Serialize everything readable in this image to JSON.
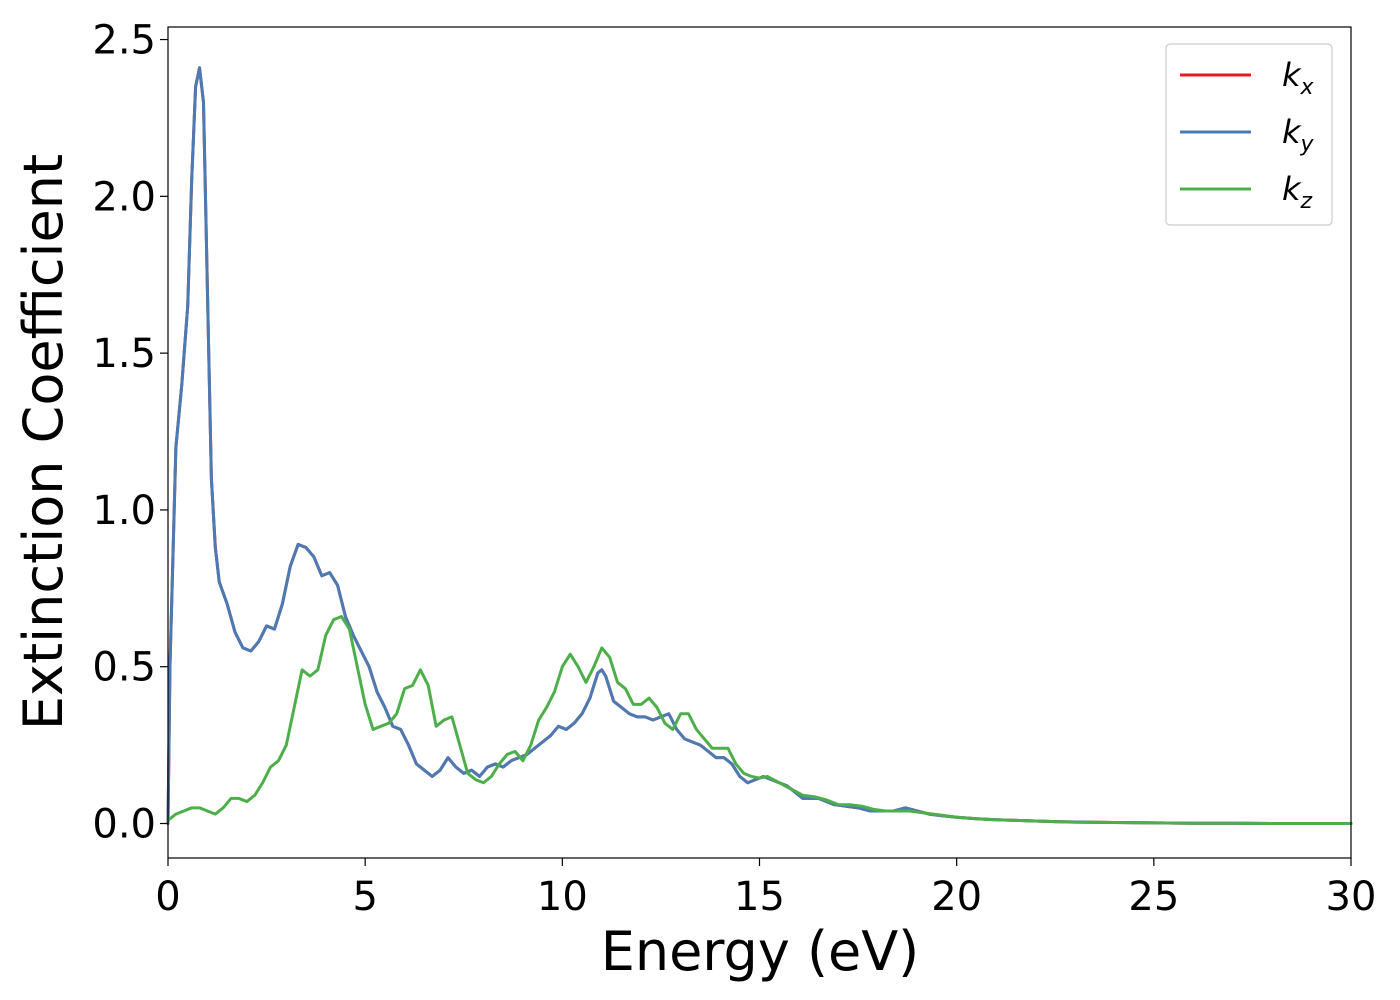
{
  "chart_data": {
    "type": "line",
    "xlabel": "Energy (eV)",
    "ylabel": "Extinction Coefficient",
    "xlim": [
      0,
      30
    ],
    "ylim": [
      -0.11,
      2.54
    ],
    "xticks": [
      0,
      5,
      10,
      15,
      20,
      25,
      30
    ],
    "xtick_labels": [
      "0",
      "5",
      "10",
      "15",
      "20",
      "25",
      "30"
    ],
    "yticks": [
      0.0,
      0.5,
      1.0,
      1.5,
      2.0,
      2.5
    ],
    "ytick_labels": [
      "0.0",
      "0.5",
      "1.0",
      "1.5",
      "2.0",
      "2.5"
    ],
    "grid": false,
    "legend_position": "top-right",
    "series": [
      {
        "name": "k",
        "subscript": "x",
        "color": "#e41a1c",
        "x": [
          0,
          0.05,
          0.2,
          0.35,
          0.5,
          0.6,
          0.7,
          0.8,
          0.9,
          1.0,
          1.1,
          1.2,
          1.3,
          1.5,
          1.7,
          1.9,
          2.1,
          2.3,
          2.5,
          2.7,
          2.9,
          3.1,
          3.3,
          3.5,
          3.7,
          3.9,
          4.1,
          4.3,
          4.5,
          4.7,
          4.9,
          5.1,
          5.3,
          5.5,
          5.7,
          5.9,
          6.1,
          6.3,
          6.5,
          6.7,
          6.9,
          7.1,
          7.3,
          7.5,
          7.7,
          7.9,
          8.1,
          8.3,
          8.5,
          8.7,
          8.9,
          9.1,
          9.3,
          9.5,
          9.7,
          9.9,
          10.1,
          10.3,
          10.5,
          10.7,
          10.9,
          11.0,
          11.1,
          11.3,
          11.5,
          11.7,
          11.9,
          12.1,
          12.3,
          12.5,
          12.7,
          12.9,
          13.1,
          13.3,
          13.5,
          13.7,
          13.9,
          14.1,
          14.3,
          14.5,
          14.7,
          14.9,
          15.1,
          15.3,
          15.5,
          15.7,
          15.9,
          16.1,
          16.3,
          16.5,
          16.7,
          16.9,
          17.2,
          17.5,
          17.8,
          18.1,
          18.4,
          18.7,
          19.0,
          19.3,
          19.6,
          20.0,
          20.5,
          21.0,
          21.5,
          22.0,
          22.5,
          23.0,
          24.0,
          25.0,
          26.0,
          27.0,
          28.0,
          29.0,
          30.0
        ],
        "y": [
          0.0,
          0.5,
          1.2,
          1.4,
          1.65,
          2.05,
          2.35,
          2.41,
          2.3,
          1.7,
          1.1,
          0.88,
          0.77,
          0.7,
          0.61,
          0.56,
          0.55,
          0.58,
          0.63,
          0.62,
          0.7,
          0.82,
          0.89,
          0.88,
          0.85,
          0.79,
          0.8,
          0.76,
          0.66,
          0.6,
          0.55,
          0.5,
          0.42,
          0.37,
          0.31,
          0.3,
          0.25,
          0.19,
          0.17,
          0.15,
          0.17,
          0.21,
          0.18,
          0.16,
          0.17,
          0.15,
          0.18,
          0.19,
          0.18,
          0.2,
          0.21,
          0.22,
          0.24,
          0.26,
          0.28,
          0.31,
          0.3,
          0.32,
          0.35,
          0.4,
          0.48,
          0.49,
          0.47,
          0.39,
          0.37,
          0.35,
          0.34,
          0.34,
          0.33,
          0.34,
          0.35,
          0.3,
          0.27,
          0.26,
          0.25,
          0.23,
          0.21,
          0.21,
          0.19,
          0.15,
          0.13,
          0.14,
          0.15,
          0.14,
          0.13,
          0.12,
          0.1,
          0.08,
          0.08,
          0.08,
          0.07,
          0.06,
          0.055,
          0.05,
          0.04,
          0.04,
          0.04,
          0.05,
          0.04,
          0.03,
          0.025,
          0.02,
          0.015,
          0.012,
          0.01,
          0.008,
          0.006,
          0.005,
          0.003,
          0.002,
          0.001,
          0.001,
          0.0,
          0.0,
          0.0
        ]
      },
      {
        "name": "k",
        "subscript": "y",
        "color": "#4a7bb5",
        "x": [
          0,
          0.05,
          0.2,
          0.35,
          0.5,
          0.6,
          0.7,
          0.8,
          0.9,
          1.0,
          1.1,
          1.2,
          1.3,
          1.5,
          1.7,
          1.9,
          2.1,
          2.3,
          2.5,
          2.7,
          2.9,
          3.1,
          3.3,
          3.5,
          3.7,
          3.9,
          4.1,
          4.3,
          4.5,
          4.7,
          4.9,
          5.1,
          5.3,
          5.5,
          5.7,
          5.9,
          6.1,
          6.3,
          6.5,
          6.7,
          6.9,
          7.1,
          7.3,
          7.5,
          7.7,
          7.9,
          8.1,
          8.3,
          8.5,
          8.7,
          8.9,
          9.1,
          9.3,
          9.5,
          9.7,
          9.9,
          10.1,
          10.3,
          10.5,
          10.7,
          10.9,
          11.0,
          11.1,
          11.3,
          11.5,
          11.7,
          11.9,
          12.1,
          12.3,
          12.5,
          12.7,
          12.9,
          13.1,
          13.3,
          13.5,
          13.7,
          13.9,
          14.1,
          14.3,
          14.5,
          14.7,
          14.9,
          15.1,
          15.3,
          15.5,
          15.7,
          15.9,
          16.1,
          16.3,
          16.5,
          16.7,
          16.9,
          17.2,
          17.5,
          17.8,
          18.1,
          18.4,
          18.7,
          19.0,
          19.3,
          19.6,
          20.0,
          20.5,
          21.0,
          21.5,
          22.0,
          22.5,
          23.0,
          24.0,
          25.0,
          26.0,
          27.0,
          28.0,
          29.0,
          30.0
        ],
        "y": [
          0.0,
          0.5,
          1.2,
          1.4,
          1.65,
          2.05,
          2.35,
          2.41,
          2.3,
          1.7,
          1.1,
          0.88,
          0.77,
          0.7,
          0.61,
          0.56,
          0.55,
          0.58,
          0.63,
          0.62,
          0.7,
          0.82,
          0.89,
          0.88,
          0.85,
          0.79,
          0.8,
          0.76,
          0.66,
          0.6,
          0.55,
          0.5,
          0.42,
          0.37,
          0.31,
          0.3,
          0.25,
          0.19,
          0.17,
          0.15,
          0.17,
          0.21,
          0.18,
          0.16,
          0.17,
          0.15,
          0.18,
          0.19,
          0.18,
          0.2,
          0.21,
          0.22,
          0.24,
          0.26,
          0.28,
          0.31,
          0.3,
          0.32,
          0.35,
          0.4,
          0.48,
          0.49,
          0.47,
          0.39,
          0.37,
          0.35,
          0.34,
          0.34,
          0.33,
          0.34,
          0.35,
          0.3,
          0.27,
          0.26,
          0.25,
          0.23,
          0.21,
          0.21,
          0.19,
          0.15,
          0.13,
          0.14,
          0.15,
          0.14,
          0.13,
          0.12,
          0.1,
          0.08,
          0.08,
          0.08,
          0.07,
          0.06,
          0.055,
          0.05,
          0.04,
          0.04,
          0.04,
          0.05,
          0.04,
          0.03,
          0.025,
          0.02,
          0.015,
          0.012,
          0.01,
          0.008,
          0.006,
          0.005,
          0.003,
          0.002,
          0.001,
          0.001,
          0.0,
          0.0,
          0.0
        ]
      },
      {
        "name": "k",
        "subscript": "z",
        "color": "#4daf4a",
        "x": [
          0,
          0.2,
          0.4,
          0.6,
          0.8,
          1.0,
          1.2,
          1.4,
          1.6,
          1.8,
          2.0,
          2.2,
          2.4,
          2.6,
          2.8,
          3.0,
          3.2,
          3.4,
          3.6,
          3.8,
          4.0,
          4.2,
          4.4,
          4.6,
          4.8,
          5.0,
          5.2,
          5.4,
          5.6,
          5.8,
          6.0,
          6.2,
          6.4,
          6.6,
          6.8,
          7.0,
          7.2,
          7.4,
          7.6,
          7.8,
          8.0,
          8.2,
          8.4,
          8.6,
          8.8,
          9.0,
          9.2,
          9.4,
          9.6,
          9.8,
          10.0,
          10.2,
          10.4,
          10.6,
          10.8,
          11.0,
          11.2,
          11.4,
          11.6,
          11.8,
          12.0,
          12.2,
          12.4,
          12.6,
          12.8,
          13.0,
          13.2,
          13.4,
          13.6,
          13.8,
          14.0,
          14.2,
          14.4,
          14.6,
          14.8,
          15.0,
          15.2,
          15.5,
          15.8,
          16.1,
          16.4,
          16.7,
          17.0,
          17.3,
          17.6,
          17.9,
          18.2,
          18.5,
          18.8,
          19.1,
          19.4,
          19.7,
          20.0,
          20.5,
          21.0,
          21.5,
          22.0,
          22.5,
          23.0,
          24.0,
          25.0,
          26.0,
          27.0,
          28.0,
          29.0,
          30.0
        ],
        "y": [
          0.01,
          0.03,
          0.04,
          0.05,
          0.05,
          0.04,
          0.03,
          0.05,
          0.08,
          0.08,
          0.07,
          0.09,
          0.13,
          0.18,
          0.2,
          0.25,
          0.37,
          0.49,
          0.47,
          0.49,
          0.6,
          0.65,
          0.66,
          0.62,
          0.5,
          0.38,
          0.3,
          0.31,
          0.32,
          0.35,
          0.43,
          0.44,
          0.49,
          0.44,
          0.31,
          0.33,
          0.34,
          0.25,
          0.16,
          0.14,
          0.13,
          0.15,
          0.19,
          0.22,
          0.23,
          0.2,
          0.25,
          0.33,
          0.37,
          0.42,
          0.5,
          0.54,
          0.5,
          0.45,
          0.5,
          0.56,
          0.53,
          0.45,
          0.43,
          0.38,
          0.38,
          0.4,
          0.37,
          0.32,
          0.3,
          0.35,
          0.35,
          0.3,
          0.27,
          0.24,
          0.24,
          0.24,
          0.19,
          0.16,
          0.15,
          0.145,
          0.15,
          0.13,
          0.11,
          0.09,
          0.085,
          0.075,
          0.06,
          0.06,
          0.055,
          0.045,
          0.04,
          0.04,
          0.04,
          0.035,
          0.03,
          0.025,
          0.02,
          0.015,
          0.012,
          0.01,
          0.008,
          0.006,
          0.004,
          0.003,
          0.002,
          0.001,
          0.001,
          0.0,
          0.0,
          0.0
        ]
      }
    ]
  }
}
